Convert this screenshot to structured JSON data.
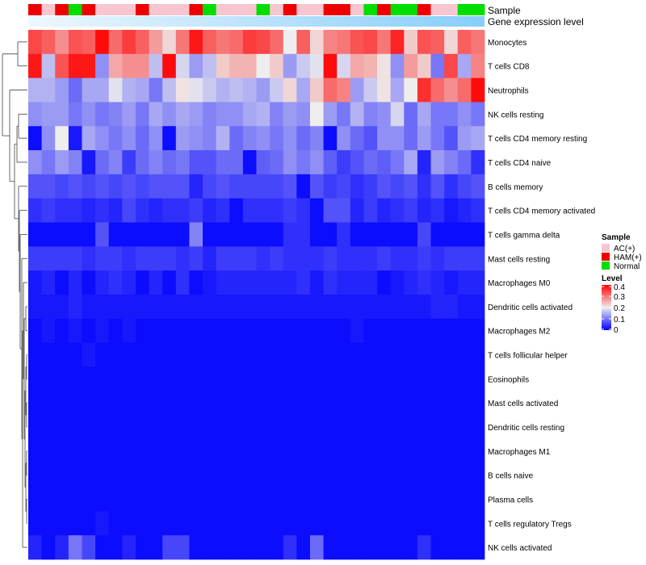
{
  "chart_data": {
    "type": "heatmap",
    "annotation_labels": [
      "Sample",
      "Gene expression level"
    ],
    "rows": [
      "Monocytes",
      "T cells CD8",
      "Neutrophils",
      "NK cells resting",
      "T cells CD4 memory resting",
      "T cells CD4 naive",
      "B cells memory",
      "T cells CD4 memory activated",
      "T cells gamma delta",
      "Mast cells resting",
      "Macrophages M0",
      "Dendritic cells activated",
      "Macrophages M2",
      "T cells follicular helper",
      "Eosinophils",
      "Mast cells activated",
      "Dendritic cells resting",
      "Macrophages M1",
      "B cells naive",
      "Plasma cells",
      "T cells regulatory  Tregs",
      "NK cells activated"
    ],
    "samples": [
      "HAM(+)",
      "AC(+)",
      "HAM(+)",
      "Normal",
      "HAM(+)",
      "AC(+)",
      "AC(+)",
      "AC(+)",
      "HAM(+)",
      "AC(+)",
      "AC(+)",
      "AC(+)",
      "HAM(+)",
      "Normal",
      "AC(+)",
      "AC(+)",
      "AC(+)",
      "Normal",
      "AC(+)",
      "HAM(+)",
      "AC(+)",
      "AC(+)",
      "HAM(+)",
      "HAM(+)",
      "AC(+)",
      "Normal",
      "HAM(+)",
      "Normal",
      "Normal",
      "HAM(+)",
      "AC(+)",
      "AC(+)",
      "Normal",
      "Normal"
    ],
    "values": [
      [
        0.34,
        0.32,
        0.28,
        0.33,
        0.32,
        0.39,
        0.31,
        0.35,
        0.32,
        0.27,
        0.22,
        0.3,
        0.38,
        0.32,
        0.3,
        0.31,
        0.35,
        0.34,
        0.31,
        0.2,
        0.32,
        0.22,
        0.29,
        0.3,
        0.33,
        0.34,
        0.3,
        0.37,
        0.23,
        0.33,
        0.32,
        0.22,
        0.32,
        0.3
      ],
      [
        0.38,
        0.16,
        0.33,
        0.38,
        0.38,
        0.12,
        0.26,
        0.28,
        0.28,
        0.16,
        0.39,
        0.18,
        0.13,
        0.16,
        0.23,
        0.25,
        0.25,
        0.2,
        0.23,
        0.13,
        0.17,
        0.19,
        0.39,
        0.18,
        0.26,
        0.25,
        0.21,
        0.12,
        0.27,
        0.23,
        0.1,
        0.34,
        0.14,
        0.29
      ],
      [
        0.15,
        0.15,
        0.13,
        0.09,
        0.14,
        0.14,
        0.19,
        0.15,
        0.14,
        0.1,
        0.16,
        0.21,
        0.19,
        0.17,
        0.15,
        0.16,
        0.15,
        0.13,
        0.17,
        0.22,
        0.14,
        0.23,
        0.31,
        0.29,
        0.13,
        0.17,
        0.21,
        0.14,
        0.2,
        0.36,
        0.31,
        0.28,
        0.31,
        0.39
      ],
      [
        0.12,
        0.13,
        0.13,
        0.1,
        0.12,
        0.1,
        0.11,
        0.13,
        0.1,
        0.14,
        0.12,
        0.14,
        0.13,
        0.11,
        0.12,
        0.12,
        0.14,
        0.15,
        0.11,
        0.13,
        0.12,
        0.2,
        0.13,
        0.1,
        0.15,
        0.11,
        0.12,
        0.18,
        0.09,
        0.14,
        0.1,
        0.1,
        0.12,
        0.1
      ],
      [
        0.01,
        0.12,
        0.2,
        0.02,
        0.14,
        0.12,
        0.1,
        0.12,
        0.09,
        0.12,
        0.01,
        0.13,
        0.12,
        0.11,
        0.15,
        0.09,
        0.11,
        0.12,
        0.1,
        0.12,
        0.09,
        0.11,
        0.01,
        0.12,
        0.09,
        0.07,
        0.12,
        0.12,
        0.09,
        0.13,
        0.1,
        0.07,
        0.13,
        0.14
      ],
      [
        0.12,
        0.1,
        0.13,
        0.11,
        0.02,
        0.09,
        0.11,
        0.05,
        0.09,
        0.11,
        0.09,
        0.1,
        0.07,
        0.07,
        0.09,
        0.09,
        0.01,
        0.08,
        0.09,
        0.12,
        0.1,
        0.12,
        0.08,
        0.05,
        0.07,
        0.09,
        0.08,
        0.1,
        0.14,
        0.03,
        0.13,
        0.11,
        0.09,
        0.04
      ],
      [
        0.07,
        0.07,
        0.06,
        0.07,
        0.06,
        0.07,
        0.06,
        0.07,
        0.06,
        0.07,
        0.07,
        0.07,
        0.03,
        0.06,
        0.07,
        0.06,
        0.06,
        0.06,
        0.06,
        0.07,
        0.01,
        0.07,
        0.05,
        0.06,
        0.04,
        0.05,
        0.07,
        0.06,
        0.07,
        0.04,
        0.07,
        0.04,
        0.06,
        0.07
      ],
      [
        0.04,
        0.05,
        0.04,
        0.04,
        0.03,
        0.04,
        0.03,
        0.06,
        0.04,
        0.03,
        0.04,
        0.04,
        0.05,
        0.03,
        0.04,
        0.01,
        0.04,
        0.04,
        0.04,
        0.05,
        0.04,
        0.01,
        0.07,
        0.07,
        0.03,
        0.05,
        0.03,
        0.04,
        0.05,
        0.03,
        0.04,
        0.02,
        0.03,
        0.04
      ],
      [
        0.01,
        0.01,
        0.01,
        0.01,
        0.01,
        0.07,
        0.01,
        0.01,
        0.01,
        0.01,
        0.01,
        0.01,
        0.11,
        0.01,
        0.01,
        0.01,
        0.01,
        0.01,
        0.01,
        0.04,
        0.04,
        0.01,
        0.01,
        0.04,
        0.01,
        0.01,
        0.01,
        0.01,
        0.01,
        0.06,
        0.01,
        0.01,
        0.01,
        0.01
      ],
      [
        0.05,
        0.05,
        0.05,
        0.05,
        0.04,
        0.05,
        0.05,
        0.04,
        0.05,
        0.05,
        0.05,
        0.04,
        0.05,
        0.03,
        0.05,
        0.05,
        0.05,
        0.04,
        0.05,
        0.04,
        0.04,
        0.04,
        0.05,
        0.04,
        0.04,
        0.04,
        0.05,
        0.04,
        0.04,
        0.05,
        0.04,
        0.05,
        0.05,
        0.05
      ],
      [
        0.02,
        0.03,
        0.01,
        0.03,
        0.01,
        0.03,
        0.04,
        0.03,
        0.01,
        0.03,
        0.01,
        0.04,
        0.01,
        0.02,
        0.03,
        0.03,
        0.03,
        0.03,
        0.03,
        0.03,
        0.04,
        0.02,
        0.04,
        0.03,
        0.03,
        0.03,
        0.01,
        0.02,
        0.03,
        0.04,
        0.03,
        0.02,
        0.03,
        0.03
      ],
      [
        0.02,
        0.02,
        0.02,
        0.03,
        0.02,
        0.02,
        0.02,
        0.02,
        0.02,
        0.02,
        0.02,
        0.02,
        0.02,
        0.02,
        0.02,
        0.02,
        0.02,
        0.02,
        0.02,
        0.02,
        0.02,
        0.02,
        0.02,
        0.02,
        0.02,
        0.02,
        0.02,
        0.02,
        0.02,
        0.02,
        0.03,
        0.03,
        0.02,
        0.02
      ],
      [
        0.01,
        0.02,
        0.01,
        0.02,
        0.01,
        0.02,
        0.01,
        0.02,
        0.01,
        0.01,
        0.01,
        0.01,
        0.01,
        0.01,
        0.01,
        0.01,
        0.01,
        0.01,
        0.01,
        0.01,
        0.01,
        0.01,
        0.01,
        0.01,
        0.02,
        0.01,
        0.01,
        0.01,
        0.01,
        0.01,
        0.01,
        0.01,
        0.01,
        0.01
      ],
      [
        0.01,
        0.01,
        0.01,
        0.01,
        0.02,
        0.01,
        0.01,
        0.01,
        0.01,
        0.01,
        0.01,
        0.01,
        0.01,
        0.01,
        0.01,
        0.01,
        0.01,
        0.01,
        0.01,
        0.01,
        0.01,
        0.01,
        0.01,
        0.01,
        0.01,
        0.01,
        0.01,
        0.01,
        0.01,
        0.01,
        0.01,
        0.01,
        0.01,
        0.01
      ],
      [
        0.01,
        0.01,
        0.01,
        0.01,
        0.01,
        0.01,
        0.01,
        0.01,
        0.01,
        0.01,
        0.01,
        0.01,
        0.01,
        0.01,
        0.01,
        0.01,
        0.01,
        0.01,
        0.01,
        0.01,
        0.01,
        0.01,
        0.01,
        0.01,
        0.01,
        0.01,
        0.01,
        0.01,
        0.01,
        0.01,
        0.01,
        0.01,
        0.01,
        0.01
      ],
      [
        0.01,
        0.01,
        0.01,
        0.01,
        0.01,
        0.01,
        0.01,
        0.01,
        0.01,
        0.01,
        0.01,
        0.01,
        0.01,
        0.01,
        0.01,
        0.01,
        0.01,
        0.01,
        0.01,
        0.01,
        0.01,
        0.01,
        0.01,
        0.01,
        0.01,
        0.01,
        0.01,
        0.01,
        0.01,
        0.01,
        0.01,
        0.01,
        0.01,
        0.01
      ],
      [
        0.01,
        0.01,
        0.01,
        0.01,
        0.01,
        0.01,
        0.01,
        0.01,
        0.01,
        0.01,
        0.01,
        0.01,
        0.01,
        0.01,
        0.01,
        0.01,
        0.01,
        0.01,
        0.01,
        0.01,
        0.01,
        0.01,
        0.01,
        0.01,
        0.01,
        0.01,
        0.01,
        0.01,
        0.01,
        0.01,
        0.01,
        0.01,
        0.01,
        0.01
      ],
      [
        0.01,
        0.01,
        0.01,
        0.01,
        0.01,
        0.01,
        0.01,
        0.01,
        0.01,
        0.01,
        0.01,
        0.01,
        0.01,
        0.01,
        0.01,
        0.01,
        0.01,
        0.01,
        0.01,
        0.01,
        0.01,
        0.01,
        0.01,
        0.01,
        0.01,
        0.01,
        0.01,
        0.01,
        0.01,
        0.01,
        0.01,
        0.01,
        0.01,
        0.01
      ],
      [
        0.01,
        0.01,
        0.01,
        0.01,
        0.01,
        0.01,
        0.01,
        0.01,
        0.01,
        0.01,
        0.01,
        0.01,
        0.01,
        0.01,
        0.01,
        0.01,
        0.01,
        0.01,
        0.01,
        0.01,
        0.01,
        0.01,
        0.01,
        0.01,
        0.01,
        0.01,
        0.01,
        0.01,
        0.01,
        0.01,
        0.01,
        0.01,
        0.01,
        0.01
      ],
      [
        0.01,
        0.01,
        0.01,
        0.01,
        0.01,
        0.01,
        0.01,
        0.01,
        0.01,
        0.01,
        0.01,
        0.01,
        0.01,
        0.01,
        0.01,
        0.01,
        0.01,
        0.01,
        0.01,
        0.01,
        0.01,
        0.01,
        0.01,
        0.01,
        0.01,
        0.01,
        0.01,
        0.01,
        0.01,
        0.01,
        0.01,
        0.01,
        0.01,
        0.01
      ],
      [
        0.01,
        0.01,
        0.01,
        0.01,
        0.01,
        0.02,
        0.01,
        0.01,
        0.01,
        0.01,
        0.01,
        0.01,
        0.01,
        0.01,
        0.01,
        0.01,
        0.01,
        0.01,
        0.01,
        0.01,
        0.01,
        0.01,
        0.01,
        0.01,
        0.01,
        0.01,
        0.01,
        0.01,
        0.01,
        0.01,
        0.01,
        0.01,
        0.01,
        0.01
      ],
      [
        0.03,
        0.01,
        0.03,
        0.1,
        0.06,
        0.01,
        0.01,
        0.03,
        0.01,
        0.01,
        0.06,
        0.06,
        0.01,
        0.01,
        0.01,
        0.01,
        0.01,
        0.01,
        0.01,
        0.04,
        0.01,
        0.09,
        0.01,
        0.01,
        0.01,
        0.01,
        0.01,
        0.01,
        0.01,
        0.04,
        0.01,
        0.01,
        0.01,
        0.01
      ]
    ],
    "legend": {
      "sample_title": "Sample",
      "sample_items": [
        {
          "label": "AC(+)",
          "color": "#f7c6d0"
        },
        {
          "label": "HAM(+)",
          "color": "#ee0000"
        },
        {
          "label": "Normal",
          "color": "#00dd00"
        }
      ],
      "level_title": "Level",
      "level_ticks": [
        {
          "value": 0.4,
          "label": "0.4"
        },
        {
          "value": 0.3,
          "label": "0.3"
        },
        {
          "value": 0.2,
          "label": "0.2"
        },
        {
          "value": 0.1,
          "label": "0.1"
        },
        {
          "value": 0.0,
          "label": "0"
        }
      ],
      "level_range": [
        0,
        0.4
      ]
    },
    "colors": {
      "low": "#0000ff",
      "mid": "#eeeeee",
      "high": "#ff0000",
      "expression_bar": "#87cefa",
      "dendrogram": "#444444"
    }
  }
}
